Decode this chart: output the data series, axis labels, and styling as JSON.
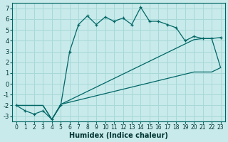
{
  "xlabel": "Humidex (Indice chaleur)",
  "bg_color": "#c8eaea",
  "grid_color": "#a8d8d8",
  "line_color": "#006666",
  "xlim": [
    -0.5,
    23.5
  ],
  "ylim": [
    -3.5,
    7.5
  ],
  "xticks": [
    0,
    1,
    2,
    3,
    4,
    5,
    6,
    7,
    8,
    9,
    10,
    11,
    12,
    13,
    14,
    15,
    16,
    17,
    18,
    19,
    20,
    21,
    22,
    23
  ],
  "yticks": [
    -3,
    -2,
    -1,
    0,
    1,
    2,
    3,
    4,
    5,
    6,
    7
  ],
  "curve1_x": [
    0,
    1,
    2,
    3,
    4,
    5,
    6,
    7,
    8,
    9,
    10,
    11,
    12,
    13,
    14,
    15,
    16,
    17,
    18,
    19,
    20,
    21,
    22,
    23
  ],
  "curve1_y": [
    -2.0,
    -2.5,
    -2.8,
    -2.5,
    -3.3,
    -2.0,
    3.0,
    5.5,
    6.3,
    5.5,
    6.2,
    5.8,
    6.1,
    5.5,
    7.1,
    5.8,
    5.8,
    5.5,
    5.2,
    4.0,
    4.4,
    4.2,
    4.2,
    4.3
  ],
  "curve2_x": [
    0,
    1,
    2,
    3,
    4,
    5,
    6,
    7,
    8,
    9,
    10,
    11,
    12,
    13,
    14,
    15,
    16,
    17,
    18,
    19,
    20,
    21,
    22,
    23
  ],
  "curve2_y": [
    -2.0,
    -2.0,
    -2.0,
    -2.0,
    -3.3,
    -1.9,
    -1.5,
    -1.1,
    -0.7,
    -0.3,
    0.1,
    0.5,
    0.9,
    1.3,
    1.7,
    2.1,
    2.5,
    2.9,
    3.3,
    3.7,
    4.1,
    4.2,
    4.2,
    1.5
  ],
  "curve3_x": [
    0,
    1,
    2,
    3,
    4,
    5,
    6,
    7,
    8,
    9,
    10,
    11,
    12,
    13,
    14,
    15,
    16,
    17,
    18,
    19,
    20,
    21,
    22,
    23
  ],
  "curve3_y": [
    -2.0,
    -2.0,
    -2.0,
    -2.0,
    -3.3,
    -1.9,
    -1.7,
    -1.5,
    -1.3,
    -1.1,
    -0.9,
    -0.7,
    -0.5,
    -0.3,
    -0.1,
    0.1,
    0.3,
    0.5,
    0.7,
    0.9,
    1.1,
    1.1,
    1.1,
    1.5
  ]
}
